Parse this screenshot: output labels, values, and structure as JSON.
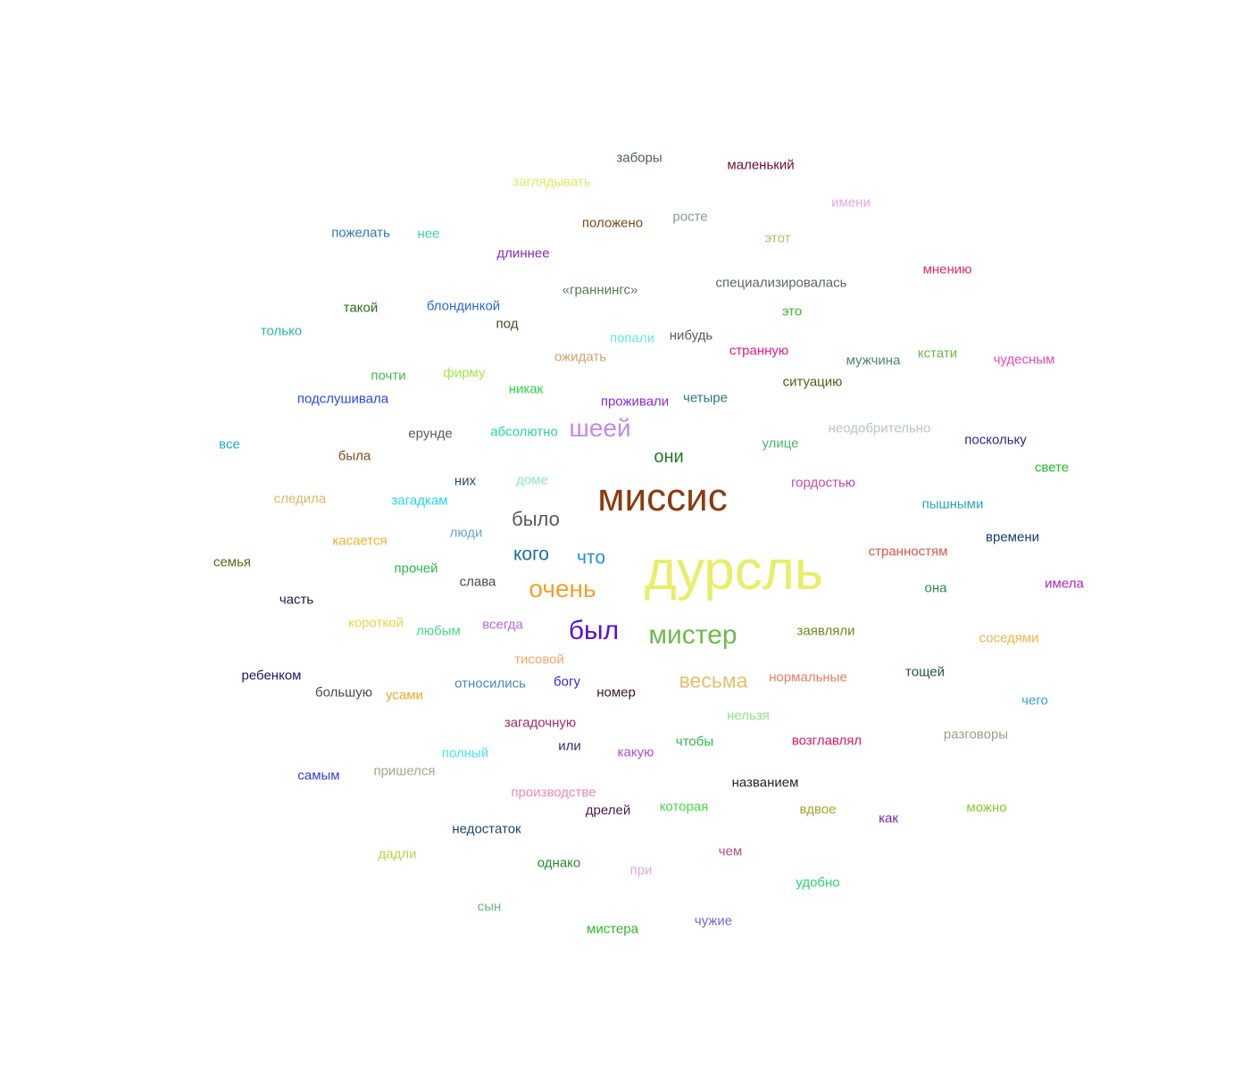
{
  "words": [
    {
      "text": "дурсль",
      "color": "#e8ee6a"
    },
    {
      "text": "миссис",
      "color": "#8b3a0e"
    },
    {
      "text": "мистер",
      "color": "#72b84e"
    },
    {
      "text": "был",
      "color": "#5a0fd6"
    },
    {
      "text": "очень",
      "color": "#f5a02e"
    },
    {
      "text": "шеей",
      "color": "#c58ae8"
    },
    {
      "text": "весьма",
      "color": "#e3bf6a"
    },
    {
      "text": "было",
      "color": "#5a5a5a"
    },
    {
      "text": "кого",
      "color": "#1a6ea3"
    },
    {
      "text": "что",
      "color": "#1e90e6"
    },
    {
      "text": "они",
      "color": "#237a2a"
    },
    {
      "text": "заборы",
      "color": "#4d5f5a"
    },
    {
      "text": "маленький",
      "color": "#6b0f3a"
    },
    {
      "text": "заглядывать",
      "color": "#e0e86a"
    },
    {
      "text": "имени",
      "color": "#e6a6e6"
    },
    {
      "text": "положено",
      "color": "#7a4a1a"
    },
    {
      "text": "росте",
      "color": "#8a9a9a"
    },
    {
      "text": "пожелать",
      "color": "#2e7ab8"
    },
    {
      "text": "нее",
      "color": "#3ad6a6"
    },
    {
      "text": "этот",
      "color": "#a6c86a"
    },
    {
      "text": "длиннее",
      "color": "#8a2ab8"
    },
    {
      "text": "мнению",
      "color": "#e62a6a"
    },
    {
      "text": "«граннингс»",
      "color": "#5a7a5a"
    },
    {
      "text": "специализировалась",
      "color": "#5a6a5a"
    },
    {
      "text": "такой",
      "color": "#2a6a1a"
    },
    {
      "text": "блондинкой",
      "color": "#2a6ad6"
    },
    {
      "text": "это",
      "color": "#3ab82a"
    },
    {
      "text": "под",
      "color": "#4a4a2a"
    },
    {
      "text": "только",
      "color": "#2ab8a6"
    },
    {
      "text": "попали",
      "color": "#6ae6e6"
    },
    {
      "text": "нибудь",
      "color": "#5a5a6a"
    },
    {
      "text": "странную",
      "color": "#e61a8a"
    },
    {
      "text": "ожидать",
      "color": "#c8a66a"
    },
    {
      "text": "кстати",
      "color": "#6ab84a"
    },
    {
      "text": "мужчина",
      "color": "#4a8a6a"
    },
    {
      "text": "чудесным",
      "color": "#e64ab8"
    },
    {
      "text": "почти",
      "color": "#4ab84a"
    },
    {
      "text": "фирму",
      "color": "#a6e64a"
    },
    {
      "text": "ситуацию",
      "color": "#5a5a1a"
    },
    {
      "text": "никак",
      "color": "#2ad64a"
    },
    {
      "text": "подслушивала",
      "color": "#2a4ad6"
    },
    {
      "text": "проживали",
      "color": "#8a2ad6"
    },
    {
      "text": "четыре",
      "color": "#2a7a7a"
    },
    {
      "text": "неодобрительно",
      "color": "#b8c8b8"
    },
    {
      "text": "все",
      "color": "#2aa6d6"
    },
    {
      "text": "ерунде",
      "color": "#5a5a5a"
    },
    {
      "text": "абсолютно",
      "color": "#2ad6a6"
    },
    {
      "text": "улице",
      "color": "#4ab86a"
    },
    {
      "text": "поскольку",
      "color": "#2a2a8a"
    },
    {
      "text": "была",
      "color": "#8a4a1a"
    },
    {
      "text": "свете",
      "color": "#2ab82a"
    },
    {
      "text": "них",
      "color": "#2a4a6a"
    },
    {
      "text": "доме",
      "color": "#8ae6c8"
    },
    {
      "text": "гордостью",
      "color": "#c84aa6"
    },
    {
      "text": "следила",
      "color": "#d6b86a"
    },
    {
      "text": "загадкам",
      "color": "#2ad6e6"
    },
    {
      "text": "пышными",
      "color": "#2aa6b8"
    },
    {
      "text": "люди",
      "color": "#6aa6d6"
    },
    {
      "text": "касается",
      "color": "#e6b82a"
    },
    {
      "text": "времени",
      "color": "#1a3a6a"
    },
    {
      "text": "странностям",
      "color": "#d6584a"
    },
    {
      "text": "семья",
      "color": "#5a6a1a"
    },
    {
      "text": "прочей",
      "color": "#2ab84a"
    },
    {
      "text": "слава",
      "color": "#4a4a4a"
    },
    {
      "text": "она",
      "color": "#2a8a4a"
    },
    {
      "text": "имела",
      "color": "#a62ab8"
    },
    {
      "text": "часть",
      "color": "#1a1a4a"
    },
    {
      "text": "короткой",
      "color": "#e6d64a"
    },
    {
      "text": "любым",
      "color": "#4ad68a"
    },
    {
      "text": "всегда",
      "color": "#b86ad6"
    },
    {
      "text": "заявляли",
      "color": "#6a8a1a"
    },
    {
      "text": "соседями",
      "color": "#e6b84a"
    },
    {
      "text": "тисовой",
      "color": "#f5a66a"
    },
    {
      "text": "ребенком",
      "color": "#1a1a6a"
    },
    {
      "text": "тощей",
      "color": "#1a5a3a"
    },
    {
      "text": "нормальные",
      "color": "#e6806a"
    },
    {
      "text": "относились",
      "color": "#4a8ab8"
    },
    {
      "text": "богу",
      "color": "#2a2ad6"
    },
    {
      "text": "номер",
      "color": "#3a1a1a"
    },
    {
      "text": "большую",
      "color": "#4a4a4a"
    },
    {
      "text": "усами",
      "color": "#f5a62a"
    },
    {
      "text": "чего",
      "color": "#3aa6c8"
    },
    {
      "text": "нельзя",
      "color": "#8ae68a"
    },
    {
      "text": "загадочную",
      "color": "#a62a6a"
    },
    {
      "text": "разговоры",
      "color": "#a69a8a"
    },
    {
      "text": "чтобы",
      "color": "#2ab84a"
    },
    {
      "text": "возглавлял",
      "color": "#d61a6a"
    },
    {
      "text": "или",
      "color": "#3a2a6a"
    },
    {
      "text": "полный",
      "color": "#4ae6e6"
    },
    {
      "text": "какую",
      "color": "#b84ad6"
    },
    {
      "text": "самым",
      "color": "#3a3ad6"
    },
    {
      "text": "пришелся",
      "color": "#a6a68a"
    },
    {
      "text": "названием",
      "color": "#1a2a1a"
    },
    {
      "text": "производстве",
      "color": "#e68ab8"
    },
    {
      "text": "которая",
      "color": "#4ad64a"
    },
    {
      "text": "вдвое",
      "color": "#a6a62a"
    },
    {
      "text": "можно",
      "color": "#8ac82a"
    },
    {
      "text": "дрелей",
      "color": "#4a1a4a"
    },
    {
      "text": "как",
      "color": "#6a2ab8"
    },
    {
      "text": "недостаток",
      "color": "#1a4a6a"
    },
    {
      "text": "дадли",
      "color": "#b8d64a"
    },
    {
      "text": "чем",
      "color": "#b84a8a"
    },
    {
      "text": "однако",
      "color": "#2a8a2a"
    },
    {
      "text": "при",
      "color": "#e6a6d6"
    },
    {
      "text": "удобно",
      "color": "#2ad66a"
    },
    {
      "text": "сын",
      "color": "#6ab88a"
    },
    {
      "text": "мистера",
      "color": "#2ab82a"
    },
    {
      "text": "чужие",
      "color": "#6a6ad6"
    }
  ]
}
